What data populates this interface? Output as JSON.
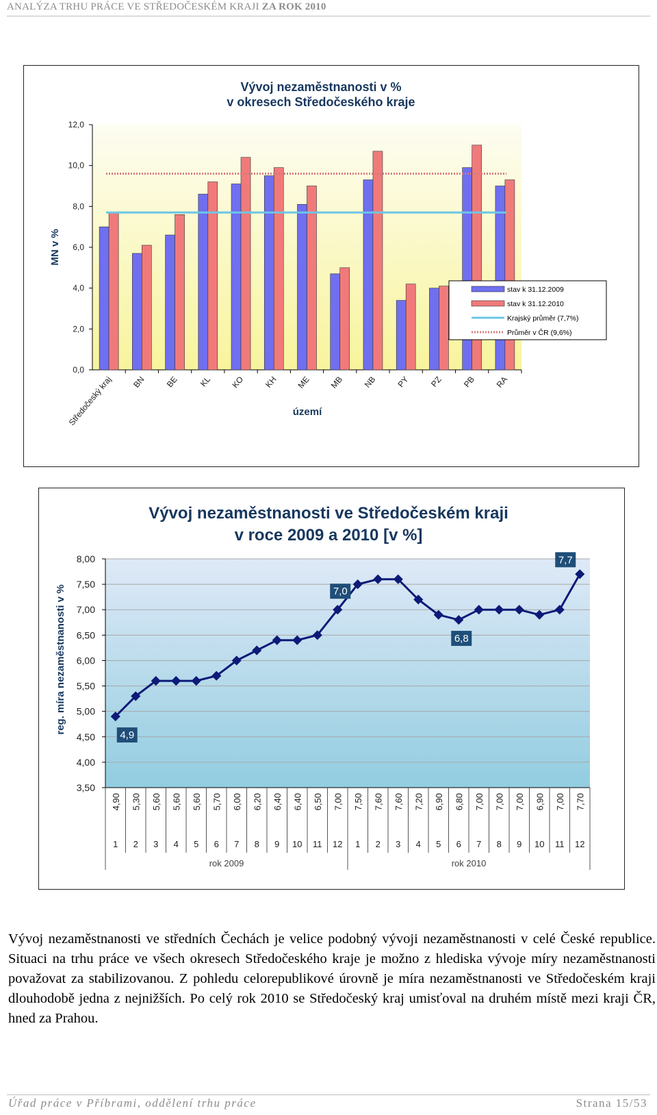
{
  "header": {
    "text_plain": "ANALÝZA TRHU PRÁCE VE STŘEDOČESKÉM KRAJI ",
    "text_bold": "ZA ROK 2010"
  },
  "chart_data": [
    {
      "type": "bar",
      "title": [
        "Vývoj nezaměstnanosti v %",
        "v okresech Středočeského kraje"
      ],
      "xlabel": "území",
      "ylabel": "MN v %",
      "ylim": [
        0,
        12
      ],
      "yticks": [
        "0,0",
        "2,0",
        "4,0",
        "6,0",
        "8,0",
        "10,0",
        "12,0"
      ],
      "categories": [
        "Středočeský kraj",
        "BN",
        "BE",
        "KL",
        "KO",
        "KH",
        "ME",
        "MB",
        "NB",
        "PY",
        "PZ",
        "PB",
        "RA"
      ],
      "series": [
        {
          "name": "stav k 31.12.2009",
          "color": "#6f6ff0",
          "values": [
            7.0,
            5.7,
            6.6,
            8.6,
            9.1,
            9.5,
            8.1,
            4.7,
            9.3,
            3.4,
            4.0,
            9.9,
            9.0
          ]
        },
        {
          "name": "stav k 31.12.2010",
          "color": "#f07a7a",
          "values": [
            7.7,
            6.1,
            7.6,
            9.2,
            10.4,
            9.9,
            9.0,
            5.0,
            10.7,
            4.2,
            4.1,
            11.0,
            9.3
          ]
        }
      ],
      "reference_lines": [
        {
          "name": "Krajský průměr (7,7%)",
          "value": 7.7,
          "color": "#6cc6e6"
        },
        {
          "name": "Průměr v ČR (9,6%)",
          "value": 9.6,
          "color": "#d47a7a"
        }
      ],
      "grid": false,
      "legend": "bottom-right",
      "background": [
        "#fdfdf2",
        "#f8f49c"
      ]
    },
    {
      "type": "line",
      "title": [
        "Vývoj nezaměstnanosti  ve Středočeském kraji",
        "v roce 2009 a 2010 [v %]"
      ],
      "ylabel": "reg. míra nezaměstnanosti v %",
      "ylim": [
        3.5,
        8.0
      ],
      "yticks": [
        "3,50",
        "4,00",
        "4,50",
        "5,00",
        "5,50",
        "6,00",
        "6,50",
        "7,00",
        "7,50",
        "8,00"
      ],
      "months": [
        "1",
        "2",
        "3",
        "4",
        "5",
        "6",
        "7",
        "8",
        "9",
        "10",
        "11",
        "12",
        "1",
        "2",
        "3",
        "4",
        "5",
        "6",
        "7",
        "8",
        "9",
        "10",
        "11",
        "12"
      ],
      "years": [
        "rok 2009",
        "rok 2010"
      ],
      "values": [
        4.9,
        5.3,
        5.6,
        5.6,
        5.6,
        5.7,
        6.0,
        6.2,
        6.4,
        6.4,
        6.5,
        7.0,
        7.5,
        7.6,
        7.6,
        7.2,
        6.9,
        6.8,
        7.0,
        7.0,
        7.0,
        6.9,
        7.0,
        7.7
      ],
      "table_values": [
        "4,90",
        "5,30",
        "5,60",
        "5,60",
        "5,60",
        "5,70",
        "6,00",
        "6,20",
        "6,40",
        "6,40",
        "6,50",
        "7,00",
        "7,50",
        "7,60",
        "7,60",
        "7,20",
        "6,90",
        "6,80",
        "7,00",
        "7,00",
        "7,00",
        "6,90",
        "7,00",
        "7,70"
      ],
      "callouts": [
        {
          "index": 0,
          "text": "4,9",
          "pos": "below"
        },
        {
          "index": 11,
          "text": "7,0",
          "pos": "above"
        },
        {
          "index": 17,
          "text": "6,8",
          "pos": "below"
        },
        {
          "index": 23,
          "text": "7,7",
          "pos": "above"
        }
      ],
      "line_color": "#0d1a78",
      "grid": true,
      "background": [
        "#dfe9f7",
        "#92cde0"
      ]
    }
  ],
  "body_text": "Vývoj nezaměstnanosti ve středních Čechách je velice podobný vývoji nezaměstnanosti v celé České republice. Situaci na trhu práce ve všech okresech Středočeského kraje je možno z hlediska vývoje míry nezaměstnanosti považovat za stabilizovanou. Z pohledu celorepublikové úrovně je míra nezaměstnanosti ve Středočeském kraji dlouhodobě jedna z nejnižších. Po celý rok 2010 se Středočeský kraj umisťoval na druhém místě mezi kraji ČR, hned za Prahou.",
  "footer": {
    "left": "Úřad práce v Příbrami, oddělení trhu práce",
    "right": "Strana 15/53"
  }
}
